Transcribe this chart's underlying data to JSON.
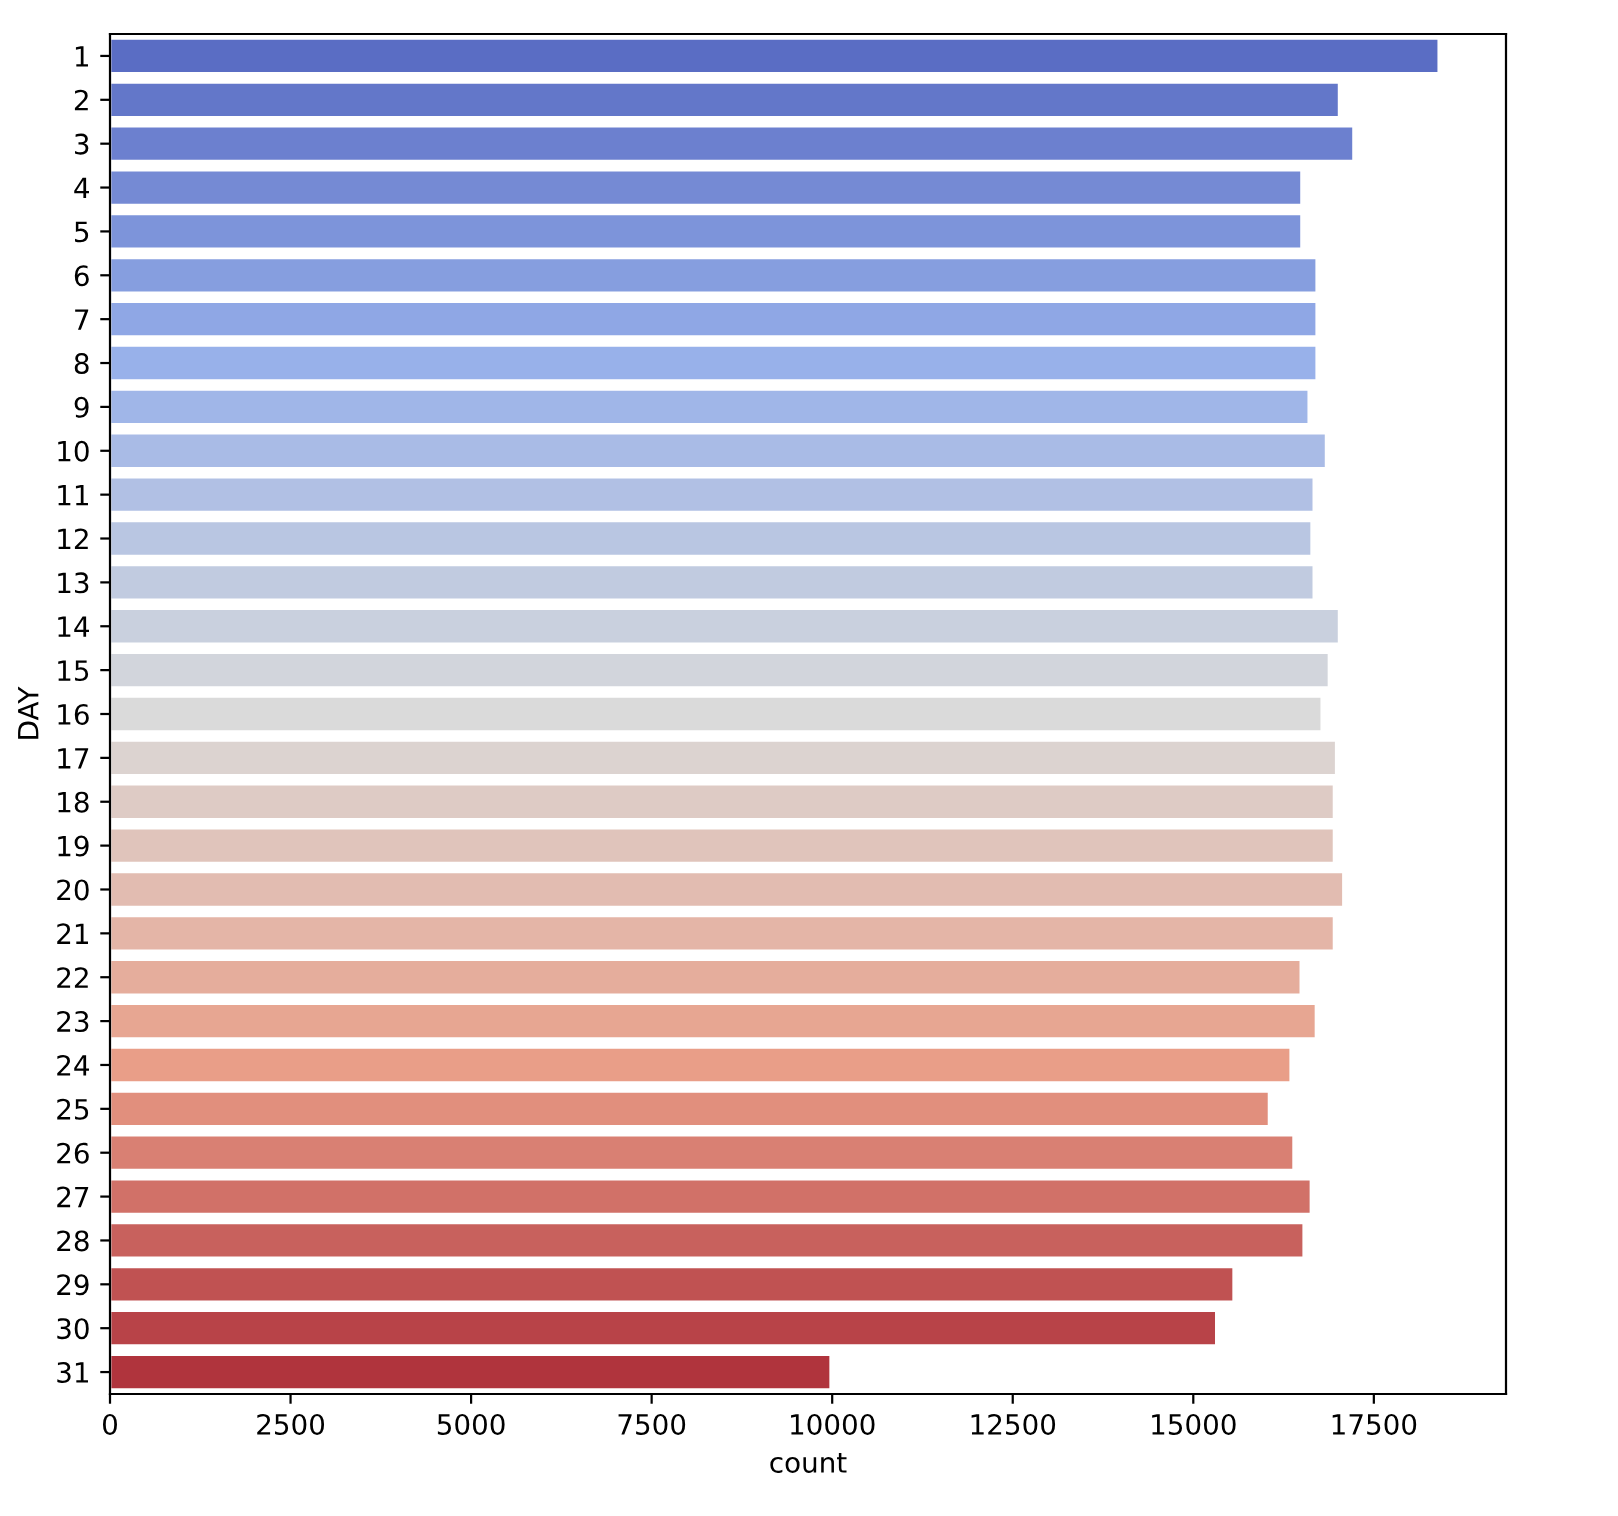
{
  "chart_data": {
    "type": "bar",
    "orientation": "horizontal",
    "xlabel": "count",
    "ylabel": "DAY",
    "categories": [
      "1",
      "2",
      "3",
      "4",
      "5",
      "6",
      "7",
      "8",
      "9",
      "10",
      "11",
      "12",
      "13",
      "14",
      "15",
      "16",
      "17",
      "18",
      "19",
      "20",
      "21",
      "22",
      "23",
      "24",
      "25",
      "26",
      "27",
      "28",
      "29",
      "30",
      "31"
    ],
    "values": [
      18400,
      17020,
      17220,
      16500,
      16500,
      16710,
      16710,
      16710,
      16600,
      16840,
      16670,
      16640,
      16670,
      17020,
      16880,
      16780,
      16980,
      16950,
      16950,
      17080,
      16950,
      16490,
      16700,
      16350,
      16050,
      16390,
      16630,
      16530,
      15560,
      15320,
      9980
    ],
    "colors": [
      "#5a6dc4",
      "#6377c9",
      "#6c80cf",
      "#758ad4",
      "#7d94da",
      "#869edf",
      "#8fa7e5",
      "#98b1ea",
      "#a0b6e8",
      "#a9bbe6",
      "#b1c0e4",
      "#b9c6e2",
      "#c1cbe0",
      "#c9d0de",
      "#d2d5dc",
      "#dadada",
      "#dcd3d0",
      "#decbc5",
      "#e0c4bb",
      "#e2bcb1",
      "#e4b5a7",
      "#e5ad9c",
      "#e7a692",
      "#e99e88",
      "#e18f7d",
      "#d98073",
      "#d17168",
      "#c8615d",
      "#c05252",
      "#b84348",
      "#b0343d"
    ],
    "xlim": [
      0,
      19330
    ],
    "xticks": [
      0,
      2500,
      5000,
      7500,
      10000,
      12500,
      15000,
      17500
    ],
    "grid": false,
    "legend": false
  }
}
